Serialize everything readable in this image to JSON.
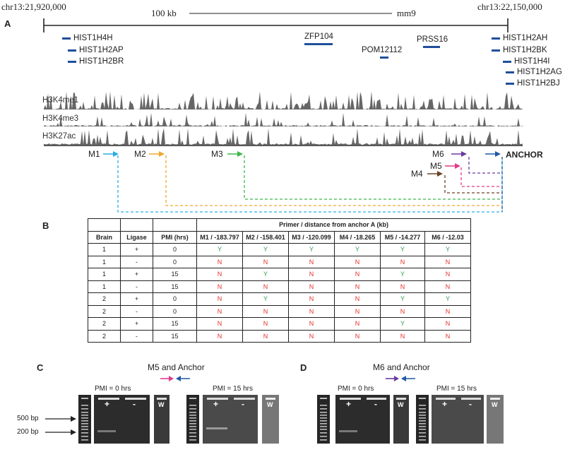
{
  "panel_a": {
    "label": "A",
    "left_coord": "chr13:21,920,000",
    "right_coord": "chr13:22,150,000",
    "scale_label": "100 kb",
    "assembly": "mm9",
    "genes": [
      "HIST1H4H",
      "HIST1H2AP",
      "HIST1H2BR",
      "ZFP104",
      "POM12112",
      "PRSS16",
      "HIST1H2AH",
      "HIST1H2BK",
      "HIST1H4I",
      "HIST1H2AG",
      "HIST1H2BJ"
    ],
    "tracks": [
      "H3K4me1",
      "H3K4me3",
      "H3K27ac"
    ],
    "primers": [
      {
        "label": "M1",
        "color": "#29aee0"
      },
      {
        "label": "M2",
        "color": "#f0a830"
      },
      {
        "label": "M3",
        "color": "#3cb84a"
      },
      {
        "label": "M4",
        "color": "#6b4226"
      },
      {
        "label": "M5",
        "color": "#e23b8c"
      },
      {
        "label": "M6",
        "color": "#6a3aa0"
      }
    ],
    "anchor_label": "ANCHOR",
    "anchor_color": "#1f5aa6"
  },
  "panel_b": {
    "label": "B",
    "group_header": "Primer / distance from anchor A (kb)",
    "columns": [
      "Brain",
      "Ligase",
      "PMI (hrs)",
      "M1 / -183.797",
      "M2 / -158.401",
      "M3 / -120.099",
      "M4 / -18.265",
      "M5 / -14.277",
      "M6 / -12.03"
    ],
    "rows": [
      [
        "1",
        "+",
        "0",
        "Y",
        "Y",
        "Y",
        "Y",
        "Y",
        "Y"
      ],
      [
        "1",
        "-",
        "0",
        "N",
        "N",
        "N",
        "N",
        "N",
        "N"
      ],
      [
        "1",
        "+",
        "15",
        "N",
        "Y",
        "N",
        "N",
        "Y",
        "N"
      ],
      [
        "1",
        "-",
        "15",
        "N",
        "N",
        "N",
        "N",
        "N",
        "N"
      ],
      [
        "2",
        "+",
        "0",
        "N",
        "Y",
        "N",
        "N",
        "Y",
        "Y"
      ],
      [
        "2",
        "-",
        "0",
        "N",
        "N",
        "N",
        "N",
        "N",
        "N"
      ],
      [
        "2",
        "+",
        "15",
        "N",
        "N",
        "N",
        "N",
        "Y",
        "N"
      ],
      [
        "2",
        "-",
        "15",
        "N",
        "N",
        "N",
        "N",
        "N",
        "N"
      ]
    ]
  },
  "panel_c": {
    "label": "C",
    "title": "M5 and Anchor",
    "pmi0": "PMI = 0 hrs",
    "pmi15": "PMI = 15 hrs",
    "plus": "+",
    "minus": "-",
    "water": "W",
    "bp500": "500 bp",
    "bp200": "200 bp"
  },
  "panel_d": {
    "label": "D",
    "title": "M6 and Anchor",
    "pmi0": "PMI = 0 hrs",
    "pmi15": "PMI = 15 hrs",
    "plus": "+",
    "minus": "-",
    "water": "W"
  }
}
